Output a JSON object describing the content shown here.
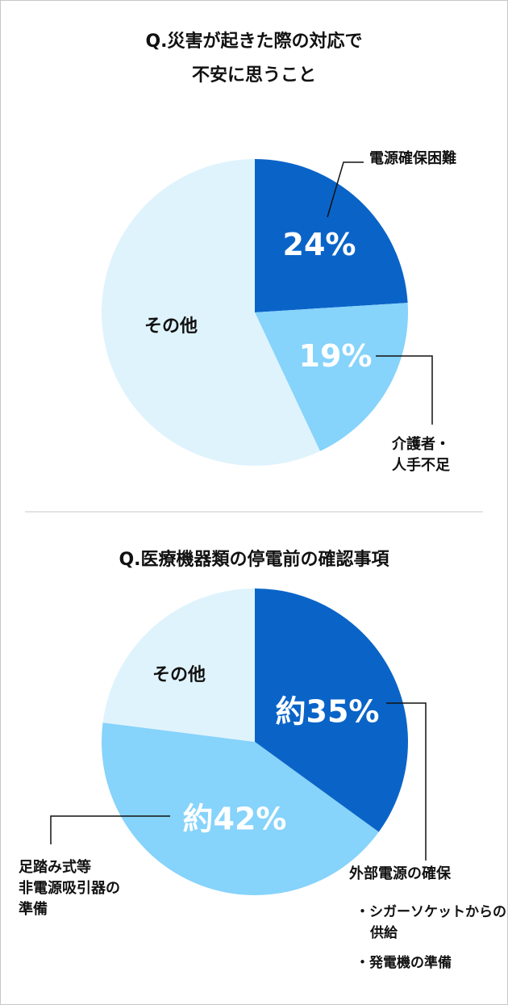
{
  "chart_data": [
    {
      "type": "pie",
      "title": "Q.災害が起きた際の対応で\n不安に思うこと",
      "categories": [
        "電源確保困難",
        "介護者・\n人手不足",
        "その他"
      ],
      "values": [
        24,
        19,
        57
      ],
      "value_labels": [
        "24%",
        "19%",
        null
      ],
      "colors": [
        "#0a64c8",
        "#86d3fb",
        "#dff3fd"
      ]
    },
    {
      "type": "pie",
      "title": "Q.医療機器類の停電前の確認事項",
      "categories": [
        "外部電源の確保",
        "足踏み式等\n非電源吸引器の\n準備",
        "その他"
      ],
      "values": [
        35,
        42,
        23
      ],
      "value_labels": [
        "約35%",
        "約42%",
        null
      ],
      "colors": [
        "#0a64c8",
        "#86d3fb",
        "#dff3fd"
      ],
      "annotations": [
        "・シガーソケットからの供給",
        "・発電機の準備"
      ]
    }
  ]
}
